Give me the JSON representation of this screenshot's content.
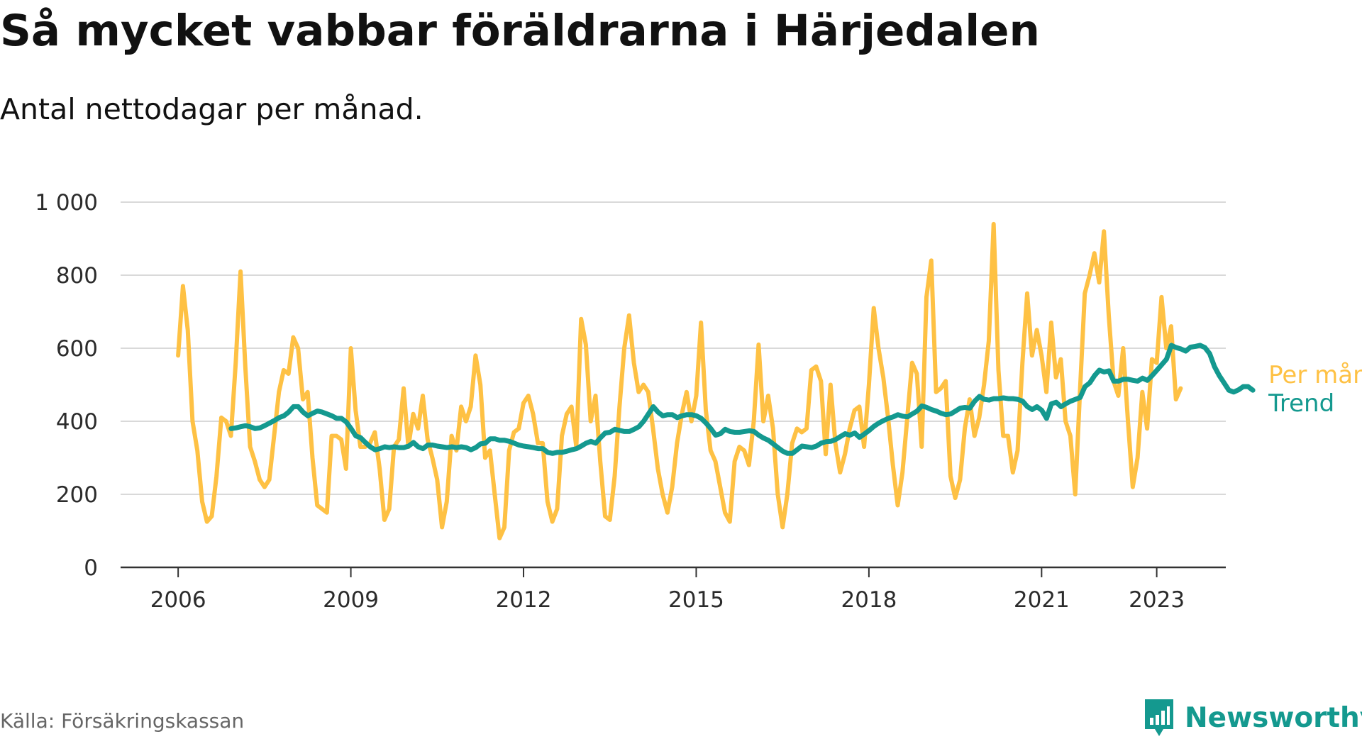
{
  "title": "Så mycket vabbar föräldrarna i Härjedalen",
  "subtitle": "Antal nettodagar per månad.",
  "source": "Källa: Försäkringskassan",
  "brand": {
    "name": "Newsworthy",
    "icon": "newsworthy-logo-icon",
    "color": "#14998f"
  },
  "chart_data": {
    "type": "line",
    "title": "Så mycket vabbar föräldrarna i Härjedalen",
    "subtitle": "Antal nettodagar per månad.",
    "xlabel": "",
    "ylabel": "",
    "ylim": [
      0,
      1000
    ],
    "xlim": [
      2005.0,
      2024.2
    ],
    "grid": true,
    "y_ticks": [
      {
        "value": 0,
        "label": "0"
      },
      {
        "value": 200,
        "label": "200"
      },
      {
        "value": 400,
        "label": "400"
      },
      {
        "value": 600,
        "label": "600"
      },
      {
        "value": 800,
        "label": "800"
      },
      {
        "value": 1000,
        "label": "1 000"
      }
    ],
    "x_ticks": [
      {
        "value": 2006,
        "label": "2006"
      },
      {
        "value": 2009,
        "label": "2009"
      },
      {
        "value": 2012,
        "label": "2012"
      },
      {
        "value": 2015,
        "label": "2015"
      },
      {
        "value": 2018,
        "label": "2018"
      },
      {
        "value": 2021,
        "label": "2021"
      },
      {
        "value": 2023,
        "label": "2023"
      }
    ],
    "series": [
      {
        "name": "Per månad",
        "color": "#fec144",
        "x_start": 2006.0,
        "step": 0.0833333,
        "values": [
          580,
          770,
          650,
          400,
          320,
          180,
          125,
          140,
          250,
          410,
          400,
          360,
          560,
          810,
          550,
          330,
          290,
          240,
          220,
          240,
          360,
          480,
          540,
          530,
          630,
          600,
          460,
          480,
          300,
          170,
          160,
          150,
          360,
          360,
          350,
          270,
          600,
          430,
          330,
          330,
          340,
          370,
          270,
          130,
          160,
          330,
          350,
          490,
          330,
          420,
          380,
          470,
          350,
          300,
          240,
          110,
          180,
          360,
          320,
          440,
          400,
          440,
          580,
          500,
          300,
          320,
          200,
          80,
          110,
          320,
          370,
          380,
          450,
          470,
          420,
          340,
          340,
          180,
          125,
          160,
          360,
          420,
          440,
          330,
          680,
          610,
          400,
          470,
          290,
          140,
          130,
          250,
          440,
          600,
          690,
          560,
          480,
          500,
          480,
          380,
          270,
          200,
          150,
          220,
          340,
          420,
          480,
          400,
          470,
          670,
          430,
          320,
          290,
          220,
          150,
          125,
          290,
          330,
          320,
          280,
          400,
          610,
          400,
          470,
          380,
          200,
          110,
          200,
          340,
          380,
          370,
          380,
          540,
          550,
          510,
          310,
          500,
          340,
          260,
          310,
          380,
          430,
          440,
          330,
          500,
          710,
          600,
          520,
          410,
          280,
          170,
          260,
          410,
          560,
          530,
          330,
          740,
          840,
          480,
          490,
          510,
          250,
          190,
          240,
          380,
          460,
          360,
          410,
          500,
          620,
          940,
          540,
          360,
          360,
          260,
          320,
          560,
          750,
          580,
          650,
          580,
          480,
          670,
          520,
          570,
          400,
          360,
          200,
          480,
          750,
          800,
          860,
          780,
          920,
          690,
          510,
          470,
          600,
          400,
          220,
          300,
          480,
          380,
          570,
          560,
          740,
          600,
          660,
          460,
          490
        ]
      },
      {
        "name": "Trend",
        "color": "#14998f",
        "x_start": 2006.92,
        "step": 0.0833333,
        "values": [
          380,
          382,
          385,
          388,
          385,
          380,
          382,
          388,
          395,
          402,
          410,
          415,
          425,
          440,
          440,
          425,
          415,
          422,
          428,
          425,
          420,
          415,
          408,
          408,
          398,
          380,
          360,
          355,
          342,
          330,
          322,
          325,
          330,
          328,
          330,
          328,
          328,
          332,
          342,
          330,
          325,
          335,
          335,
          332,
          330,
          328,
          330,
          328,
          330,
          328,
          322,
          328,
          338,
          340,
          352,
          352,
          348,
          348,
          345,
          340,
          335,
          332,
          330,
          328,
          325,
          325,
          315,
          312,
          315,
          315,
          318,
          322,
          325,
          332,
          340,
          345,
          340,
          355,
          368,
          370,
          378,
          375,
          372,
          372,
          378,
          385,
          400,
          420,
          440,
          425,
          415,
          418,
          418,
          410,
          415,
          418,
          418,
          415,
          408,
          395,
          380,
          362,
          366,
          378,
          372,
          370,
          370,
          372,
          374,
          372,
          362,
          354,
          348,
          338,
          328,
          318,
          312,
          312,
          322,
          332,
          330,
          328,
          332,
          340,
          344,
          345,
          350,
          358,
          366,
          362,
          368,
          356,
          365,
          375,
          386,
          395,
          402,
          408,
          412,
          418,
          414,
          412,
          420,
          428,
          442,
          438,
          432,
          428,
          422,
          418,
          420,
          428,
          436,
          438,
          436,
          455,
          468,
          460,
          458,
          462,
          462,
          464,
          462,
          462,
          460,
          455,
          440,
          432,
          440,
          430,
          408,
          448,
          452,
          440,
          448,
          455,
          460,
          465,
          495,
          505,
          525,
          540,
          535,
          538,
          510,
          510,
          515,
          515,
          512,
          510,
          518,
          512,
          525,
          540,
          555,
          570,
          608,
          602,
          598,
          592,
          603,
          605,
          608,
          602,
          585,
          550,
          525,
          505,
          485,
          480,
          486,
          495,
          495,
          485
        ]
      }
    ],
    "legend": [
      {
        "label": "Per månad",
        "color": "#fec144"
      },
      {
        "label": "Trend",
        "color": "#14998f"
      }
    ]
  }
}
